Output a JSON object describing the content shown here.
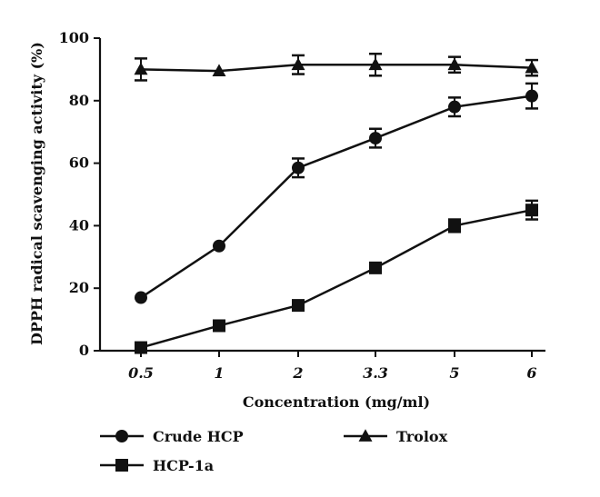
{
  "chart_data": {
    "type": "line",
    "xlabel": "Concentration (mg/ml)",
    "ylabel": "DPPH radical scavenging activity (%)",
    "ylim": [
      0,
      100
    ],
    "yticks": [
      0,
      20,
      40,
      60,
      80,
      100
    ],
    "categories": [
      "0.5",
      "1",
      "2",
      "3.3",
      "5",
      "6"
    ],
    "grid": false,
    "series": [
      {
        "name": "Crude HCP",
        "marker": "circle",
        "values": [
          17,
          33.5,
          58.5,
          68,
          78,
          81.5
        ],
        "errors": [
          0.5,
          0.5,
          3,
          3,
          3,
          4
        ]
      },
      {
        "name": "HCP-1a",
        "marker": "square",
        "values": [
          1,
          8,
          14.5,
          26.5,
          40,
          45
        ],
        "errors": [
          0.5,
          0.5,
          0.5,
          0.5,
          2,
          3
        ]
      },
      {
        "name": "Trolox",
        "marker": "triangle",
        "values": [
          90,
          89.5,
          91.5,
          91.5,
          91.5,
          90.5
        ],
        "errors": [
          3.5,
          0.5,
          3,
          3.5,
          2.5,
          2.5
        ]
      }
    ],
    "legend": [
      "Crude HCP",
      "HCP-1a",
      "Trolox"
    ]
  }
}
